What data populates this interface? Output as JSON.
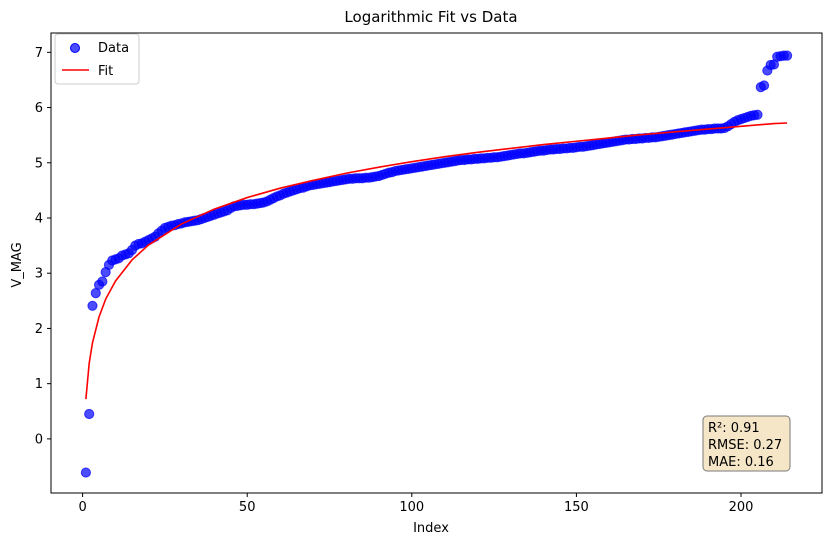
{
  "chart_data": {
    "type": "scatter",
    "title": "Logarithmic Fit vs Data",
    "xlabel": "Index",
    "ylabel": "V_MAG",
    "xlim": [
      -9.6,
      224.6
    ],
    "ylim": [
      -0.98,
      7.35
    ],
    "xticks": [
      0,
      50,
      100,
      150,
      200
    ],
    "yticks": [
      0,
      1,
      2,
      3,
      4,
      5,
      6,
      7
    ],
    "grid": false,
    "legend": {
      "placement": "upper-left",
      "entries": [
        "Data",
        "Fit"
      ]
    },
    "colors": {
      "data": "#0000ff",
      "fit": "#ff0000",
      "stats_box_fill": "#f5e6c8",
      "stats_box_edge": "#7a7a7a"
    },
    "series": [
      {
        "name": "Data",
        "kind": "scatter",
        "points": [
          [
            1,
            -0.61
          ],
          [
            2,
            0.45
          ],
          [
            3,
            2.41
          ],
          [
            4,
            2.64
          ],
          [
            5,
            2.79
          ],
          [
            6,
            2.85
          ],
          [
            7,
            3.02
          ],
          [
            8,
            3.15
          ],
          [
            9,
            3.23
          ],
          [
            10,
            3.25
          ],
          [
            11,
            3.27
          ],
          [
            12,
            3.32
          ],
          [
            13,
            3.34
          ],
          [
            14,
            3.36
          ],
          [
            15,
            3.42
          ],
          [
            16,
            3.5
          ],
          [
            17,
            3.53
          ],
          [
            18,
            3.54
          ],
          [
            19,
            3.57
          ],
          [
            20,
            3.6
          ],
          [
            21,
            3.63
          ],
          [
            22,
            3.66
          ],
          [
            23,
            3.72
          ],
          [
            24,
            3.77
          ],
          [
            25,
            3.82
          ],
          [
            26,
            3.84
          ],
          [
            27,
            3.86
          ],
          [
            28,
            3.87
          ],
          [
            29,
            3.89
          ],
          [
            30,
            3.9
          ],
          [
            31,
            3.92
          ],
          [
            32,
            3.93
          ],
          [
            33,
            3.94
          ],
          [
            34,
            3.95
          ],
          [
            35,
            3.96
          ],
          [
            36,
            3.98
          ],
          [
            37,
            4.0
          ],
          [
            38,
            4.02
          ],
          [
            39,
            4.04
          ],
          [
            40,
            4.06
          ],
          [
            41,
            4.08
          ],
          [
            42,
            4.1
          ],
          [
            43,
            4.12
          ],
          [
            44,
            4.14
          ],
          [
            45,
            4.18
          ],
          [
            46,
            4.21
          ],
          [
            47,
            4.22
          ],
          [
            48,
            4.23
          ],
          [
            49,
            4.24
          ],
          [
            50,
            4.24
          ],
          [
            51,
            4.25
          ],
          [
            52,
            4.25
          ],
          [
            53,
            4.26
          ],
          [
            54,
            4.27
          ],
          [
            55,
            4.28
          ],
          [
            56,
            4.3
          ],
          [
            57,
            4.33
          ],
          [
            58,
            4.36
          ],
          [
            59,
            4.39
          ],
          [
            60,
            4.41
          ],
          [
            61,
            4.44
          ],
          [
            62,
            4.46
          ],
          [
            63,
            4.48
          ],
          [
            64,
            4.5
          ],
          [
            65,
            4.52
          ],
          [
            66,
            4.54
          ],
          [
            67,
            4.55
          ],
          [
            68,
            4.57
          ],
          [
            69,
            4.59
          ],
          [
            70,
            4.6
          ],
          [
            71,
            4.61
          ],
          [
            72,
            4.62
          ],
          [
            73,
            4.63
          ],
          [
            74,
            4.64
          ],
          [
            75,
            4.65
          ],
          [
            76,
            4.66
          ],
          [
            77,
            4.67
          ],
          [
            78,
            4.68
          ],
          [
            79,
            4.69
          ],
          [
            80,
            4.7
          ],
          [
            81,
            4.71
          ],
          [
            82,
            4.71
          ],
          [
            83,
            4.72
          ],
          [
            84,
            4.72
          ],
          [
            85,
            4.72
          ],
          [
            86,
            4.73
          ],
          [
            87,
            4.73
          ],
          [
            88,
            4.74
          ],
          [
            89,
            4.75
          ],
          [
            90,
            4.76
          ],
          [
            91,
            4.78
          ],
          [
            92,
            4.8
          ],
          [
            93,
            4.82
          ],
          [
            94,
            4.83
          ],
          [
            95,
            4.85
          ],
          [
            96,
            4.86
          ],
          [
            97,
            4.87
          ],
          [
            98,
            4.88
          ],
          [
            99,
            4.89
          ],
          [
            100,
            4.9
          ],
          [
            101,
            4.91
          ],
          [
            102,
            4.92
          ],
          [
            103,
            4.93
          ],
          [
            104,
            4.94
          ],
          [
            105,
            4.95
          ],
          [
            106,
            4.96
          ],
          [
            107,
            4.97
          ],
          [
            108,
            4.98
          ],
          [
            109,
            4.99
          ],
          [
            110,
            5.0
          ],
          [
            111,
            5.01
          ],
          [
            112,
            5.02
          ],
          [
            113,
            5.03
          ],
          [
            114,
            5.04
          ],
          [
            115,
            5.05
          ],
          [
            116,
            5.05
          ],
          [
            117,
            5.06
          ],
          [
            118,
            5.06
          ],
          [
            119,
            5.07
          ],
          [
            120,
            5.07
          ],
          [
            121,
            5.08
          ],
          [
            122,
            5.08
          ],
          [
            123,
            5.09
          ],
          [
            124,
            5.09
          ],
          [
            125,
            5.1
          ],
          [
            126,
            5.1
          ],
          [
            127,
            5.11
          ],
          [
            128,
            5.12
          ],
          [
            129,
            5.13
          ],
          [
            130,
            5.14
          ],
          [
            131,
            5.15
          ],
          [
            132,
            5.16
          ],
          [
            133,
            5.17
          ],
          [
            134,
            5.17
          ],
          [
            135,
            5.18
          ],
          [
            136,
            5.19
          ],
          [
            137,
            5.2
          ],
          [
            138,
            5.21
          ],
          [
            139,
            5.22
          ],
          [
            140,
            5.22
          ],
          [
            141,
            5.23
          ],
          [
            142,
            5.24
          ],
          [
            143,
            5.24
          ],
          [
            144,
            5.25
          ],
          [
            145,
            5.25
          ],
          [
            146,
            5.26
          ],
          [
            147,
            5.26
          ],
          [
            148,
            5.27
          ],
          [
            149,
            5.27
          ],
          [
            150,
            5.28
          ],
          [
            151,
            5.29
          ],
          [
            152,
            5.29
          ],
          [
            153,
            5.3
          ],
          [
            154,
            5.31
          ],
          [
            155,
            5.32
          ],
          [
            156,
            5.33
          ],
          [
            157,
            5.34
          ],
          [
            158,
            5.35
          ],
          [
            159,
            5.36
          ],
          [
            160,
            5.37
          ],
          [
            161,
            5.38
          ],
          [
            162,
            5.39
          ],
          [
            163,
            5.4
          ],
          [
            164,
            5.41
          ],
          [
            165,
            5.42
          ],
          [
            166,
            5.42
          ],
          [
            167,
            5.43
          ],
          [
            168,
            5.43
          ],
          [
            169,
            5.44
          ],
          [
            170,
            5.44
          ],
          [
            171,
            5.45
          ],
          [
            172,
            5.45
          ],
          [
            173,
            5.46
          ],
          [
            174,
            5.46
          ],
          [
            175,
            5.47
          ],
          [
            176,
            5.48
          ],
          [
            177,
            5.49
          ],
          [
            178,
            5.5
          ],
          [
            179,
            5.51
          ],
          [
            180,
            5.52
          ],
          [
            181,
            5.53
          ],
          [
            182,
            5.54
          ],
          [
            183,
            5.55
          ],
          [
            184,
            5.56
          ],
          [
            185,
            5.57
          ],
          [
            186,
            5.58
          ],
          [
            187,
            5.59
          ],
          [
            188,
            5.6
          ],
          [
            189,
            5.6
          ],
          [
            190,
            5.61
          ],
          [
            191,
            5.61
          ],
          [
            192,
            5.62
          ],
          [
            193,
            5.62
          ],
          [
            194,
            5.62
          ],
          [
            195,
            5.63
          ],
          [
            196,
            5.66
          ],
          [
            197,
            5.7
          ],
          [
            198,
            5.74
          ],
          [
            199,
            5.77
          ],
          [
            200,
            5.79
          ],
          [
            201,
            5.81
          ],
          [
            202,
            5.83
          ],
          [
            203,
            5.85
          ],
          [
            204,
            5.86
          ],
          [
            205,
            5.87
          ],
          [
            206,
            6.37
          ],
          [
            207,
            6.4
          ],
          [
            208,
            6.67
          ],
          [
            209,
            6.77
          ],
          [
            210,
            6.78
          ],
          [
            211,
            6.92
          ],
          [
            212,
            6.93
          ],
          [
            213,
            6.94
          ],
          [
            214,
            6.94
          ]
        ]
      },
      {
        "name": "Fit",
        "kind": "line",
        "x": [
          1,
          2,
          3,
          5,
          7,
          10,
          15,
          20,
          30,
          40,
          50,
          60,
          70,
          80,
          90,
          100,
          110,
          120,
          130,
          140,
          150,
          160,
          170,
          180,
          190,
          200,
          210,
          214
        ],
        "y": [
          0.72,
          1.37,
          1.74,
          2.21,
          2.53,
          2.86,
          3.24,
          3.51,
          3.89,
          4.16,
          4.37,
          4.54,
          4.68,
          4.81,
          4.92,
          5.02,
          5.11,
          5.19,
          5.26,
          5.33,
          5.39,
          5.45,
          5.51,
          5.56,
          5.61,
          5.66,
          5.71,
          5.72
        ]
      }
    ],
    "stats": [
      "R²: 0.91",
      "RMSE: 0.27",
      "MAE: 0.16"
    ]
  }
}
